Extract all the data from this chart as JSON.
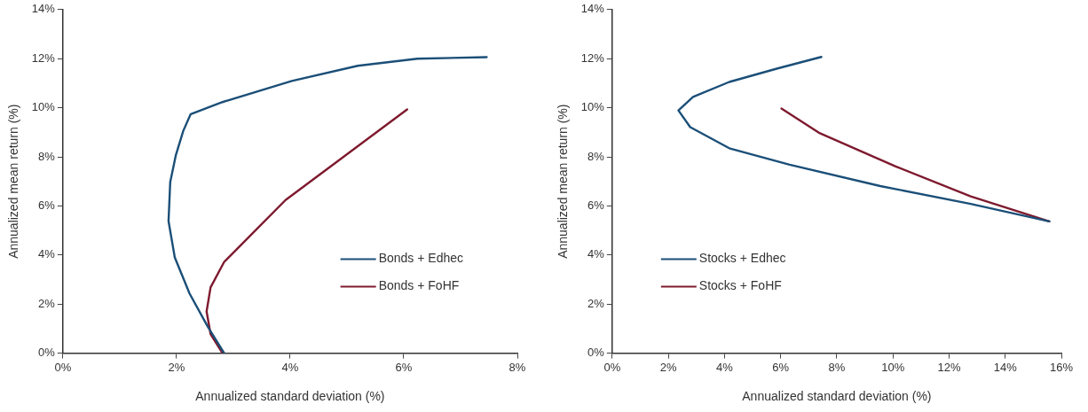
{
  "chart_data": [
    {
      "type": "line",
      "xlabel": "Annualized standard deviation (%)",
      "ylabel": "Annualized mean return (%)",
      "xlim": [
        0,
        8
      ],
      "xticks": [
        {
          "value": 0,
          "label": "0%"
        },
        {
          "value": 2,
          "label": "2%"
        },
        {
          "value": 4,
          "label": "4%"
        },
        {
          "value": 6,
          "label": "6%"
        },
        {
          "value": 8,
          "label": "8%"
        }
      ],
      "ylim": [
        0,
        14
      ],
      "yticks": [
        {
          "value": 0,
          "label": "0%"
        },
        {
          "value": 2,
          "label": "2%"
        },
        {
          "value": 4,
          "label": "4%"
        },
        {
          "value": 6,
          "label": "6%"
        },
        {
          "value": 8,
          "label": "8%"
        },
        {
          "value": 10,
          "label": "10%"
        },
        {
          "value": 12,
          "label": "12%"
        },
        {
          "value": 14,
          "label": "14%"
        }
      ],
      "legend": "bottom right",
      "marker": "none",
      "line_style": "solid",
      "series": [
        {
          "name": "Bonds + Edhec",
          "color": "#1b4f78",
          "x": [
            2.84,
            2.55,
            2.23,
            1.97,
            1.86,
            1.89,
            1.99,
            2.12,
            2.25,
            2.81,
            4.03,
            5.19,
            6.24,
            7.46
          ],
          "values": [
            0,
            1.08,
            2.43,
            3.9,
            5.38,
            6.97,
            8.08,
            9.06,
            9.74,
            10.23,
            11.09,
            11.71,
            12.0,
            12.06
          ]
        },
        {
          "name": "Bonds + FoHF",
          "color": "#7e1a2e",
          "x": [
            2.81,
            2.6,
            2.53,
            2.6,
            2.84,
            3.92,
            6.06
          ],
          "values": [
            0,
            0.78,
            1.7,
            2.68,
            3.72,
            6.24,
            9.93
          ]
        }
      ]
    },
    {
      "type": "line",
      "xlabel": "Annualized standard deviation (%)",
      "ylabel": "Annualized mean return (%)",
      "xlim": [
        0,
        16
      ],
      "xticks": [
        {
          "value": 0,
          "label": "0%"
        },
        {
          "value": 2,
          "label": "2%"
        },
        {
          "value": 4,
          "label": "4%"
        },
        {
          "value": 6,
          "label": "6%"
        },
        {
          "value": 8,
          "label": "8%"
        },
        {
          "value": 10,
          "label": "10%"
        },
        {
          "value": 12,
          "label": "12%"
        },
        {
          "value": 14,
          "label": "14%"
        },
        {
          "value": 16,
          "label": "16%"
        }
      ],
      "ylim": [
        0,
        14
      ],
      "yticks": [
        {
          "value": 0,
          "label": "0%"
        },
        {
          "value": 2,
          "label": "2%"
        },
        {
          "value": 4,
          "label": "4%"
        },
        {
          "value": 6,
          "label": "6%"
        },
        {
          "value": 8,
          "label": "8%"
        },
        {
          "value": 10,
          "label": "10%"
        },
        {
          "value": 12,
          "label": "12%"
        },
        {
          "value": 14,
          "label": "14%"
        }
      ],
      "legend": "bottom left",
      "marker": "none",
      "line_style": "solid",
      "series": [
        {
          "name": "Stocks + Edhec",
          "color": "#1b4f78",
          "x": [
            7.45,
            5.89,
            4.17,
            2.88,
            2.36,
            2.78,
            4.17,
            6.32,
            9.55,
            12.77,
            15.57
          ],
          "values": [
            12.07,
            11.6,
            11.05,
            10.44,
            9.89,
            9.21,
            8.35,
            7.68,
            6.81,
            6.08,
            5.37
          ]
        },
        {
          "name": "Stocks + FoHF",
          "color": "#7e1a2e",
          "x": [
            6.03,
            7.4,
            10.1,
            12.77,
            15.57
          ],
          "values": [
            9.97,
            8.96,
            7.61,
            6.39,
            5.37
          ]
        }
      ]
    }
  ]
}
